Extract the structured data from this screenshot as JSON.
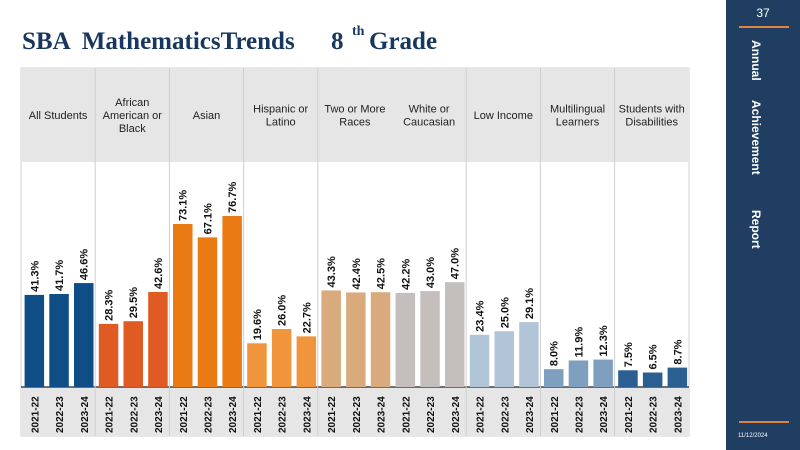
{
  "title": {
    "main": "SBA  MathematicsTrends",
    "grade_num": "8",
    "grade_sup": "th",
    "grade_word": "Grade"
  },
  "sidebar": {
    "page_number": "37",
    "vertical_words": [
      "Annual",
      "Achievement",
      "Report"
    ],
    "date": "11/12/2024",
    "background": "#1f3e61",
    "accent": "#e0823a"
  },
  "chart_data": {
    "type": "bar",
    "title": "",
    "xlabel": "",
    "ylabel": "",
    "ylim": [
      0,
      100
    ],
    "grid": false,
    "legend": "none",
    "years": [
      "2021-22",
      "2022-23",
      "2023-24"
    ],
    "groups": [
      {
        "label": [
          "All Students"
        ],
        "color": "#0e4d86",
        "values": [
          41.3,
          41.7,
          46.6
        ],
        "labels": [
          "41.3%",
          "41.7%",
          "46.6%"
        ]
      },
      {
        "label": [
          "African",
          "American or",
          "Black"
        ],
        "color": "#e05a24",
        "values": [
          28.3,
          29.5,
          42.6
        ],
        "labels": [
          "28.3%",
          "29.5%",
          "42.6%"
        ]
      },
      {
        "label": [
          "Asian"
        ],
        "color": "#ea7a14",
        "values": [
          73.1,
          67.1,
          76.7
        ],
        "labels": [
          "73.1%",
          "67.1%",
          "76.7%"
        ]
      },
      {
        "label": [
          "Hispanic or",
          "Latino"
        ],
        "color": "#f0953c",
        "values": [
          19.6,
          26.0,
          22.7
        ],
        "labels": [
          "19.6%",
          "26.0%",
          "22.7%"
        ]
      },
      {
        "label": [
          "Two or More",
          "Races"
        ],
        "color": "#d8aa7c",
        "values": [
          43.3,
          42.4,
          42.5
        ],
        "labels": [
          "43.3%",
          "42.4%",
          "42.5%"
        ]
      },
      {
        "label": [
          "White or",
          "Caucasian"
        ],
        "color": "#c4bfbd",
        "values": [
          42.2,
          43.0,
          47.0
        ],
        "labels": [
          "42.2%",
          "43.0%",
          "47.0%"
        ]
      },
      {
        "label": [
          "Low Income"
        ],
        "color": "#b2c5d8",
        "values": [
          23.4,
          25.0,
          29.1
        ],
        "labels": [
          "23.4%",
          "25.0%",
          "29.1%"
        ]
      },
      {
        "label": [
          "Multilingual",
          "Learners"
        ],
        "color": "#7f9fbe",
        "values": [
          8.0,
          11.9,
          12.3
        ],
        "labels": [
          "8.0%",
          "11.9%",
          "12.3%"
        ]
      },
      {
        "label": [
          "Students with",
          "Disabilities"
        ],
        "color": "#2b5f91",
        "values": [
          7.5,
          6.5,
          8.7
        ],
        "labels": [
          "7.5%",
          "6.5%",
          "8.7%"
        ]
      }
    ]
  }
}
